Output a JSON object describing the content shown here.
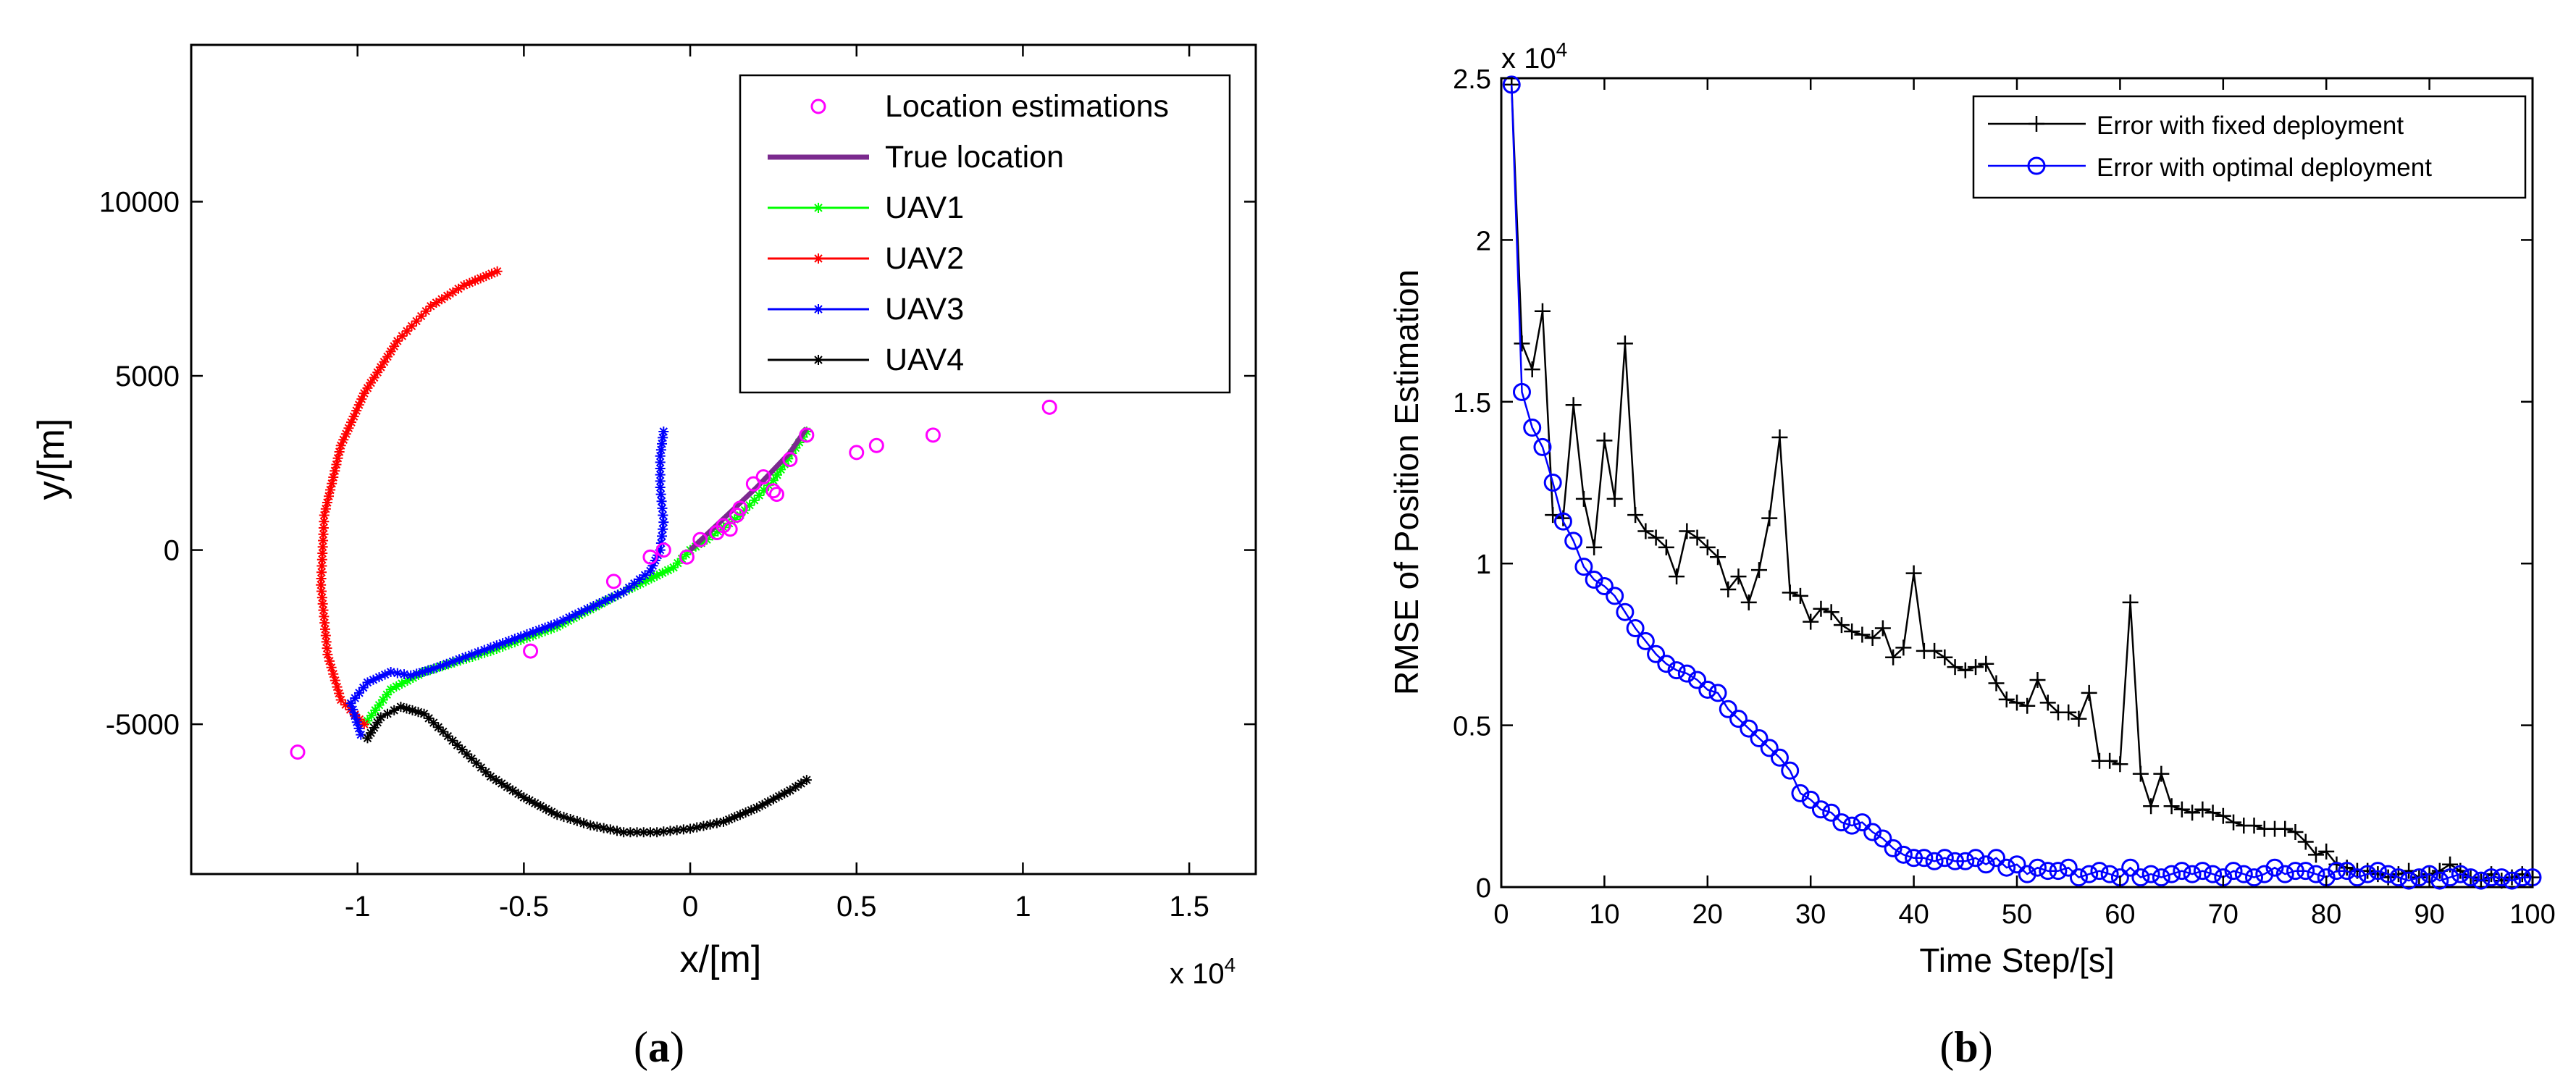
{
  "chart_data": [
    {
      "type": "line",
      "panel_label": "(a)",
      "panel_label_letter": "a",
      "xlabel": "x/[m]",
      "ylabel": "y/[m]",
      "x_exponent_label": "x 10",
      "x_exponent_power": "4",
      "x_scale": 10000,
      "xlim": [
        -15000,
        17000
      ],
      "ylim": [
        -9300,
        14500
      ],
      "x_ticks": [
        -10000,
        -5000,
        0,
        5000,
        10000,
        15000
      ],
      "x_tick_labels": [
        "-1",
        "-0.5",
        "0",
        "0.5",
        "1",
        "1.5"
      ],
      "y_ticks": [
        -5000,
        0,
        5000,
        10000
      ],
      "y_tick_labels": [
        "-5000",
        "0",
        "5000",
        "10000"
      ],
      "grid": false,
      "legend_position": "top-right",
      "series": [
        {
          "name": "Location estimations",
          "kind": "scatter-circle",
          "color": "#ff00ff",
          "points": [
            [
              -11800,
              -5800
            ],
            [
              -4800,
              -2900
            ],
            [
              -2300,
              -900
            ],
            [
              -1200,
              -200
            ],
            [
              -800,
              0
            ],
            [
              -100,
              -200
            ],
            [
              300,
              300
            ],
            [
              800,
              500
            ],
            [
              1000,
              700
            ],
            [
              1200,
              600
            ],
            [
              1400,
              1000
            ],
            [
              1500,
              1200
            ],
            [
              1900,
              1900
            ],
            [
              2200,
              2100
            ],
            [
              2500,
              1700
            ],
            [
              2600,
              1600
            ],
            [
              3000,
              2600
            ],
            [
              3500,
              3300
            ],
            [
              5000,
              2800
            ],
            [
              5600,
              3000
            ],
            [
              7300,
              3300
            ],
            [
              10800,
              4100
            ]
          ]
        },
        {
          "name": "True location",
          "kind": "line",
          "color": "#7b2a8e",
          "points": [
            [
              0,
              0
            ],
            [
              1000,
              900
            ],
            [
              2000,
              1800
            ],
            [
              3000,
              2800
            ],
            [
              3500,
              3500
            ]
          ]
        },
        {
          "name": "UAV1",
          "kind": "line-marker",
          "color": "#00ff00",
          "points": [
            [
              -9700,
              -4900
            ],
            [
              -9000,
              -4000
            ],
            [
              -8000,
              -3500
            ],
            [
              -6000,
              -2900
            ],
            [
              -4000,
              -2200
            ],
            [
              -2000,
              -1200
            ],
            [
              -500,
              -500
            ],
            [
              0,
              0
            ],
            [
              500,
              300
            ],
            [
              1500,
              1000
            ],
            [
              2500,
              2000
            ],
            [
              3500,
              3400
            ]
          ]
        },
        {
          "name": "UAV2",
          "kind": "line-marker",
          "color": "#ff0000",
          "points": [
            [
              -9800,
              -5000
            ],
            [
              -10500,
              -4300
            ],
            [
              -10900,
              -3000
            ],
            [
              -11100,
              -1000
            ],
            [
              -11000,
              1000
            ],
            [
              -10500,
              3000
            ],
            [
              -9800,
              4500
            ],
            [
              -8800,
              6000
            ],
            [
              -7800,
              7000
            ],
            [
              -6800,
              7600
            ],
            [
              -5800,
              8000
            ]
          ]
        },
        {
          "name": "UAV3",
          "kind": "line-marker",
          "color": "#0000ff",
          "points": [
            [
              -9900,
              -5300
            ],
            [
              -10200,
              -4400
            ],
            [
              -9700,
              -3800
            ],
            [
              -9000,
              -3500
            ],
            [
              -8400,
              -3600
            ],
            [
              -7700,
              -3400
            ],
            [
              -6000,
              -2800
            ],
            [
              -4000,
              -2100
            ],
            [
              -2000,
              -1200
            ],
            [
              -1200,
              -600
            ],
            [
              -900,
              0
            ],
            [
              -800,
              800
            ],
            [
              -900,
              1800
            ],
            [
              -900,
              2700
            ],
            [
              -800,
              3400
            ]
          ]
        },
        {
          "name": "UAV4",
          "kind": "line-marker",
          "color": "#000000",
          "points": [
            [
              -9700,
              -5400
            ],
            [
              -9300,
              -4800
            ],
            [
              -8700,
              -4500
            ],
            [
              -8000,
              -4700
            ],
            [
              -7000,
              -5600
            ],
            [
              -6000,
              -6500
            ],
            [
              -5000,
              -7100
            ],
            [
              -4000,
              -7600
            ],
            [
              -3000,
              -7900
            ],
            [
              -2000,
              -8100
            ],
            [
              -1000,
              -8100
            ],
            [
              0,
              -8000
            ],
            [
              1000,
              -7800
            ],
            [
              2000,
              -7400
            ],
            [
              3000,
              -6900
            ],
            [
              3500,
              -6600
            ]
          ]
        }
      ]
    },
    {
      "type": "line",
      "panel_label": "(b)",
      "panel_label_letter": "b",
      "xlabel": "Time Step/[s]",
      "ylabel": "RMSE of Position Estimation",
      "y_exponent_label": "x 10",
      "y_exponent_power": "4",
      "y_scale": 10000,
      "xlim": [
        0,
        100
      ],
      "ylim": [
        0,
        25000
      ],
      "x_ticks": [
        0,
        10,
        20,
        30,
        40,
        50,
        60,
        70,
        80,
        90,
        100
      ],
      "x_tick_labels": [
        "0",
        "10",
        "20",
        "30",
        "40",
        "50",
        "60",
        "70",
        "80",
        "90",
        "100"
      ],
      "y_ticks": [
        0,
        5000,
        10000,
        15000,
        20000,
        25000
      ],
      "y_tick_labels": [
        "0",
        "0.5",
        "1",
        "1.5",
        "2",
        "2.5"
      ],
      "grid": false,
      "legend_position": "top-right",
      "series": [
        {
          "name": "Error with fixed deployment",
          "kind": "line-plus",
          "color": "#000000",
          "x": [
            1,
            2,
            3,
            4,
            5,
            6,
            7,
            8,
            9,
            10,
            11,
            12,
            13,
            14,
            15,
            16,
            17,
            18,
            19,
            20,
            21,
            22,
            23,
            24,
            25,
            26,
            27,
            28,
            29,
            30,
            31,
            32,
            33,
            34,
            35,
            36,
            37,
            38,
            39,
            40,
            41,
            42,
            43,
            44,
            45,
            46,
            47,
            48,
            49,
            50,
            51,
            52,
            53,
            54,
            55,
            56,
            57,
            58,
            59,
            60,
            61,
            62,
            63,
            64,
            65,
            66,
            67,
            68,
            69,
            70,
            71,
            72,
            73,
            74,
            75,
            76,
            77,
            78,
            79,
            80,
            81,
            82,
            83,
            84,
            85,
            86,
            87,
            88,
            89,
            90,
            91,
            92,
            93,
            94,
            95,
            96,
            97,
            98,
            99,
            100
          ],
          "values": [
            24800,
            16800,
            16000,
            17800,
            11500,
            11400,
            14900,
            12000,
            10500,
            13800,
            12000,
            16800,
            11500,
            11000,
            10800,
            10500,
            9600,
            11000,
            10800,
            10500,
            10200,
            9200,
            9600,
            8800,
            9800,
            11400,
            13900,
            9100,
            9000,
            8200,
            8600,
            8500,
            8100,
            7900,
            7800,
            7700,
            8000,
            7100,
            7400,
            9700,
            7300,
            7300,
            7100,
            6800,
            6700,
            6800,
            6900,
            6300,
            5800,
            5700,
            5600,
            6400,
            5700,
            5400,
            5400,
            5200,
            6000,
            3900,
            3900,
            3800,
            8800,
            3500,
            2500,
            3500,
            2500,
            2400,
            2300,
            2400,
            2300,
            2200,
            2000,
            1900,
            1900,
            1800,
            1800,
            1800,
            1700,
            1400,
            1000,
            1100,
            700,
            600,
            500,
            500,
            400,
            300,
            400,
            500,
            300,
            400,
            500,
            700,
            500,
            300,
            200,
            400,
            200,
            300,
            400,
            300
          ]
        },
        {
          "name": "Error with optimal deployment",
          "kind": "line-circle",
          "color": "#0000ff",
          "x": [
            1,
            2,
            3,
            4,
            5,
            6,
            7,
            8,
            9,
            10,
            11,
            12,
            13,
            14,
            15,
            16,
            17,
            18,
            19,
            20,
            21,
            22,
            23,
            24,
            25,
            26,
            27,
            28,
            29,
            30,
            31,
            32,
            33,
            34,
            35,
            36,
            37,
            38,
            39,
            40,
            41,
            42,
            43,
            44,
            45,
            46,
            47,
            48,
            49,
            50,
            51,
            52,
            53,
            54,
            55,
            56,
            57,
            58,
            59,
            60,
            61,
            62,
            63,
            64,
            65,
            66,
            67,
            68,
            69,
            70,
            71,
            72,
            73,
            74,
            75,
            76,
            77,
            78,
            79,
            80,
            81,
            82,
            83,
            84,
            85,
            86,
            87,
            88,
            89,
            90,
            91,
            92,
            93,
            94,
            95,
            96,
            97,
            98,
            99,
            100
          ],
          "values": [
            24800,
            15300,
            14200,
            13600,
            12500,
            11300,
            10700,
            9900,
            9500,
            9300,
            9000,
            8500,
            8000,
            7600,
            7200,
            6900,
            6700,
            6600,
            6400,
            6100,
            6000,
            5500,
            5200,
            4900,
            4600,
            4300,
            4000,
            3600,
            2900,
            2700,
            2400,
            2300,
            2000,
            1900,
            2000,
            1700,
            1500,
            1200,
            1000,
            900,
            900,
            800,
            900,
            800,
            800,
            900,
            700,
            900,
            600,
            700,
            400,
            600,
            500,
            500,
            600,
            300,
            400,
            500,
            400,
            300,
            600,
            300,
            400,
            300,
            400,
            500,
            400,
            500,
            400,
            300,
            500,
            400,
            300,
            400,
            600,
            400,
            500,
            500,
            400,
            300,
            500,
            500,
            300,
            400,
            500,
            400,
            300,
            200,
            300,
            400,
            200,
            300,
            400,
            300,
            200,
            300,
            300,
            200,
            300,
            300
          ]
        }
      ]
    }
  ]
}
